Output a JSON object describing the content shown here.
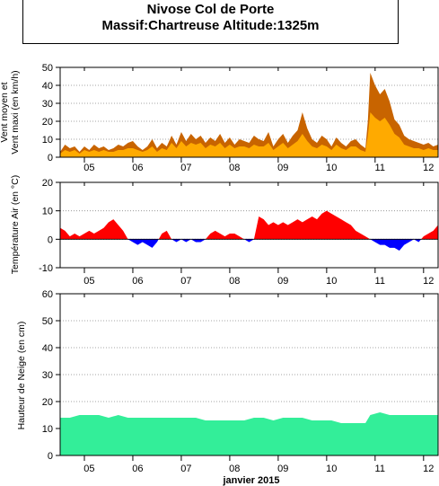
{
  "title": {
    "line1": "Nivose Col de Porte",
    "line2": "Massif:Chartreuse Altitude:1325m"
  },
  "xlabel": "janvier 2015",
  "day_labels": [
    "05",
    "06",
    "07",
    "08",
    "09",
    "10",
    "11",
    "12"
  ],
  "colors": {
    "wind_max": "#c86400",
    "wind_mean": "#ffaa00",
    "temp_pos": "#ff0000",
    "temp_neg": "#0000ff",
    "snow": "#33ee99"
  },
  "chart_data": [
    {
      "type": "area",
      "name": "wind",
      "ylabel_lines": [
        "Vent moyen et",
        "Vent maxi (en km/h)"
      ],
      "ylim": [
        0,
        50
      ],
      "yticks": [
        0,
        10,
        20,
        30,
        40,
        50
      ],
      "x_unit": "day of January 2015",
      "grid": "dotted horizontal",
      "series": [
        {
          "key": "max",
          "x": [
            4.5,
            4.6,
            4.7,
            4.8,
            4.9,
            5.0,
            5.1,
            5.2,
            5.3,
            5.4,
            5.5,
            5.6,
            5.7,
            5.8,
            5.9,
            6.0,
            6.1,
            6.2,
            6.3,
            6.4,
            6.5,
            6.6,
            6.7,
            6.8,
            6.9,
            7.0,
            7.1,
            7.2,
            7.3,
            7.4,
            7.5,
            7.6,
            7.7,
            7.8,
            7.9,
            8.0,
            8.1,
            8.2,
            8.3,
            8.4,
            8.5,
            8.6,
            8.7,
            8.8,
            8.9,
            9.0,
            9.1,
            9.2,
            9.3,
            9.4,
            9.5,
            9.6,
            9.7,
            9.8,
            9.9,
            10.0,
            10.1,
            10.2,
            10.3,
            10.4,
            10.5,
            10.6,
            10.7,
            10.8,
            10.85,
            10.9,
            11.0,
            11.1,
            11.2,
            11.3,
            11.4,
            11.5,
            11.6,
            11.7,
            11.8,
            11.9,
            12.0,
            12.1,
            12.2,
            12.3
          ],
          "values": [
            3,
            7,
            5,
            6,
            3,
            6,
            4,
            7,
            5,
            6,
            4,
            5,
            7,
            6,
            8,
            9,
            6,
            4,
            6,
            10,
            5,
            8,
            6,
            12,
            7,
            14,
            9,
            13,
            10,
            12,
            8,
            11,
            9,
            13,
            8,
            11,
            7,
            10,
            9,
            8,
            12,
            10,
            9,
            14,
            6,
            10,
            13,
            8,
            12,
            15,
            25,
            16,
            10,
            8,
            12,
            10,
            6,
            11,
            8,
            6,
            9,
            10,
            7,
            5,
            20,
            47,
            40,
            35,
            38,
            31,
            21,
            18,
            12,
            10,
            9,
            8,
            7,
            8,
            6,
            7
          ]
        },
        {
          "key": "mean",
          "x": [
            4.5,
            4.6,
            4.7,
            4.8,
            4.9,
            5.0,
            5.1,
            5.2,
            5.3,
            5.4,
            5.5,
            5.6,
            5.7,
            5.8,
            5.9,
            6.0,
            6.1,
            6.2,
            6.3,
            6.4,
            6.5,
            6.6,
            6.7,
            6.8,
            6.9,
            7.0,
            7.1,
            7.2,
            7.3,
            7.4,
            7.5,
            7.6,
            7.7,
            7.8,
            7.9,
            8.0,
            8.1,
            8.2,
            8.3,
            8.4,
            8.5,
            8.6,
            8.7,
            8.8,
            8.9,
            9.0,
            9.1,
            9.2,
            9.3,
            9.4,
            9.5,
            9.6,
            9.7,
            9.8,
            9.9,
            10.0,
            10.1,
            10.2,
            10.3,
            10.4,
            10.5,
            10.6,
            10.7,
            10.8,
            10.85,
            10.9,
            11.0,
            11.1,
            11.2,
            11.3,
            11.4,
            11.5,
            11.6,
            11.7,
            11.8,
            11.9,
            12.0,
            12.1,
            12.2,
            12.3
          ],
          "values": [
            2,
            4,
            3,
            4,
            2,
            4,
            3,
            4,
            3,
            4,
            3,
            3,
            4,
            4,
            5,
            5,
            4,
            3,
            4,
            6,
            3,
            5,
            4,
            8,
            5,
            9,
            6,
            8,
            7,
            8,
            5,
            7,
            6,
            8,
            5,
            7,
            5,
            6,
            6,
            5,
            7,
            6,
            6,
            8,
            4,
            6,
            8,
            5,
            7,
            9,
            13,
            9,
            6,
            5,
            7,
            6,
            4,
            7,
            5,
            4,
            6,
            6,
            4,
            3,
            12,
            25,
            22,
            20,
            22,
            18,
            13,
            11,
            7,
            6,
            5,
            5,
            4,
            5,
            4,
            4
          ]
        }
      ]
    },
    {
      "type": "area",
      "name": "temperature",
      "ylabel_lines": [
        "Température Air (en °C)"
      ],
      "ylim": [
        -10,
        20
      ],
      "yticks": [
        -10,
        0,
        10,
        20
      ],
      "x_unit": "day of January 2015",
      "grid": "dotted horizontal",
      "series": [
        {
          "key": "temp",
          "x": [
            4.5,
            4.6,
            4.7,
            4.8,
            4.9,
            5.0,
            5.1,
            5.2,
            5.3,
            5.4,
            5.5,
            5.6,
            5.7,
            5.8,
            5.9,
            6.0,
            6.1,
            6.2,
            6.3,
            6.4,
            6.5,
            6.6,
            6.7,
            6.8,
            6.9,
            7.0,
            7.1,
            7.2,
            7.3,
            7.4,
            7.5,
            7.6,
            7.7,
            7.8,
            7.9,
            8.0,
            8.1,
            8.2,
            8.3,
            8.4,
            8.5,
            8.6,
            8.7,
            8.8,
            8.9,
            9.0,
            9.1,
            9.2,
            9.3,
            9.4,
            9.5,
            9.6,
            9.7,
            9.8,
            9.9,
            10.0,
            10.1,
            10.2,
            10.3,
            10.4,
            10.5,
            10.6,
            10.7,
            10.8,
            10.9,
            11.0,
            11.1,
            11.2,
            11.3,
            11.4,
            11.5,
            11.6,
            11.7,
            11.8,
            11.9,
            12.0,
            12.1,
            12.2,
            12.3
          ],
          "values": [
            4,
            3,
            1,
            2,
            1,
            2,
            3,
            2,
            3,
            4,
            6,
            7,
            5,
            3,
            0,
            -1,
            -2,
            -1,
            -2,
            -3,
            -1,
            2,
            3,
            0,
            -1,
            0,
            -1,
            0,
            -1,
            -1,
            0,
            2,
            3,
            2,
            1,
            2,
            2,
            1,
            0,
            -1,
            0,
            8,
            7,
            5,
            6,
            5,
            6,
            5,
            6,
            7,
            6,
            7,
            8,
            7,
            9,
            10,
            9,
            8,
            7,
            6,
            5,
            3,
            2,
            1,
            0,
            -1,
            -2,
            -2,
            -3,
            -3,
            -4,
            -2,
            -1,
            0,
            -1,
            1,
            2,
            3,
            5
          ]
        }
      ]
    },
    {
      "type": "area",
      "name": "snow",
      "ylabel_lines": [
        "Hauteur de Neige (en cm)"
      ],
      "ylim": [
        0,
        60
      ],
      "yticks": [
        0,
        10,
        20,
        30,
        40,
        50,
        60
      ],
      "x_unit": "day of January 2015",
      "grid": "dotted horizontal",
      "series": [
        {
          "key": "snow",
          "x": [
            4.5,
            4.7,
            4.9,
            5.1,
            5.3,
            5.5,
            5.7,
            5.9,
            6.1,
            6.3,
            6.5,
            6.7,
            6.9,
            7.1,
            7.3,
            7.5,
            7.7,
            7.9,
            8.1,
            8.3,
            8.5,
            8.7,
            8.9,
            9.1,
            9.3,
            9.5,
            9.7,
            9.9,
            10.1,
            10.3,
            10.5,
            10.7,
            10.8,
            10.9,
            11.1,
            11.3,
            11.5,
            11.7,
            11.9,
            12.1,
            12.3
          ],
          "values": [
            14,
            14,
            15,
            15,
            15,
            14,
            15,
            14,
            14,
            14,
            14,
            14,
            14,
            14,
            14,
            13,
            13,
            13,
            13,
            13,
            14,
            14,
            13,
            14,
            14,
            14,
            13,
            13,
            13,
            12,
            12,
            12,
            12,
            15,
            16,
            15,
            15,
            15,
            15,
            15,
            15
          ]
        }
      ]
    }
  ]
}
